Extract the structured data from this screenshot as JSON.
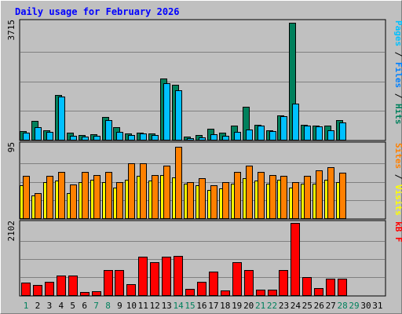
{
  "title": "Daily usage for February 2026",
  "days": [
    "1",
    "2",
    "3",
    "4",
    "5",
    "6",
    "7",
    "8",
    "9",
    "10",
    "11",
    "12",
    "13",
    "14",
    "15",
    "16",
    "17",
    "18",
    "19",
    "20",
    "21",
    "22",
    "23",
    "24",
    "25",
    "26",
    "27",
    "28",
    "29",
    "30",
    "31"
  ],
  "weekend_days": [
    "1",
    "7",
    "8",
    "14",
    "15",
    "21",
    "22",
    "28",
    "29"
  ],
  "colors": {
    "hits": "#00805c",
    "files": "#00c0ff",
    "visits": "#ffff00",
    "sites": "#ff8000",
    "kbytes": "#ff0000",
    "title": "#0000ff",
    "weekday": "#000000",
    "weekend": "#00805c",
    "grid": "#808080",
    "bg": "#c0c0c0",
    "panel_border": "#000000"
  },
  "chart_data": [
    {
      "type": "bar",
      "panel": "top",
      "ymax_label": "3715",
      "ylim": [
        0,
        3715
      ],
      "legend": [
        {
          "text": "Pages",
          "color": "#00c0ff"
        },
        {
          "text": " / ",
          "color": "#000000"
        },
        {
          "text": "Files",
          "color": "#0080ff"
        },
        {
          "text": " / ",
          "color": "#000000"
        },
        {
          "text": "Hits",
          "color": "#00805c"
        }
      ],
      "series": [
        {
          "name": "Hits",
          "color": "#00805c",
          "values": [
            270,
            590,
            310,
            1430,
            230,
            160,
            170,
            730,
            410,
            200,
            220,
            200,
            1950,
            1740,
            110,
            140,
            360,
            230,
            440,
            1050,
            470,
            310,
            780,
            3715,
            480,
            450,
            450,
            620
          ]
        },
        {
          "name": "Files",
          "color": "#00c0ff",
          "values": [
            230,
            410,
            260,
            1370,
            120,
            110,
            130,
            630,
            260,
            140,
            190,
            150,
            1800,
            1580,
            60,
            80,
            180,
            130,
            240,
            320,
            460,
            280,
            750,
            1140,
            450,
            420,
            290,
            560
          ]
        }
      ]
    },
    {
      "type": "bar",
      "panel": "middle",
      "ymax_label": "95",
      "ylim": [
        0,
        95
      ],
      "legend": [
        {
          "text": "Sites",
          "color": "#ff8000"
        },
        {
          "text": " / ",
          "color": "#000000"
        },
        {
          "text": "Visits",
          "color": "#ffff00"
        }
      ],
      "series": [
        {
          "name": "Visits",
          "color": "#ffff00",
          "values": [
            43,
            30,
            47,
            49,
            33,
            47,
            50,
            47,
            40,
            50,
            55,
            49,
            56,
            53,
            45,
            43,
            37,
            39,
            45,
            52,
            49,
            45,
            50,
            40,
            45,
            45,
            50,
            47
          ]
        },
        {
          "name": "Sites",
          "color": "#ff8000",
          "values": [
            55,
            33,
            55,
            60,
            44,
            60,
            56,
            60,
            47,
            71,
            71,
            56,
            68,
            93,
            47,
            52,
            43,
            47,
            60,
            68,
            60,
            56,
            55,
            47,
            55,
            62,
            66,
            59
          ]
        }
      ]
    },
    {
      "type": "bar",
      "panel": "bottom",
      "ymax_label": "2102",
      "ylim": [
        0,
        2102
      ],
      "legend": [
        {
          "text": "kB F",
          "color": "#ff0000"
        }
      ],
      "series": [
        {
          "name": "kB F",
          "color": "#ff0000",
          "values": [
            360,
            300,
            390,
            570,
            570,
            90,
            110,
            740,
            730,
            330,
            1130,
            960,
            1120,
            1140,
            190,
            390,
            690,
            140,
            970,
            730,
            170,
            160,
            730,
            2102,
            520,
            210,
            490,
            470
          ]
        }
      ]
    }
  ]
}
